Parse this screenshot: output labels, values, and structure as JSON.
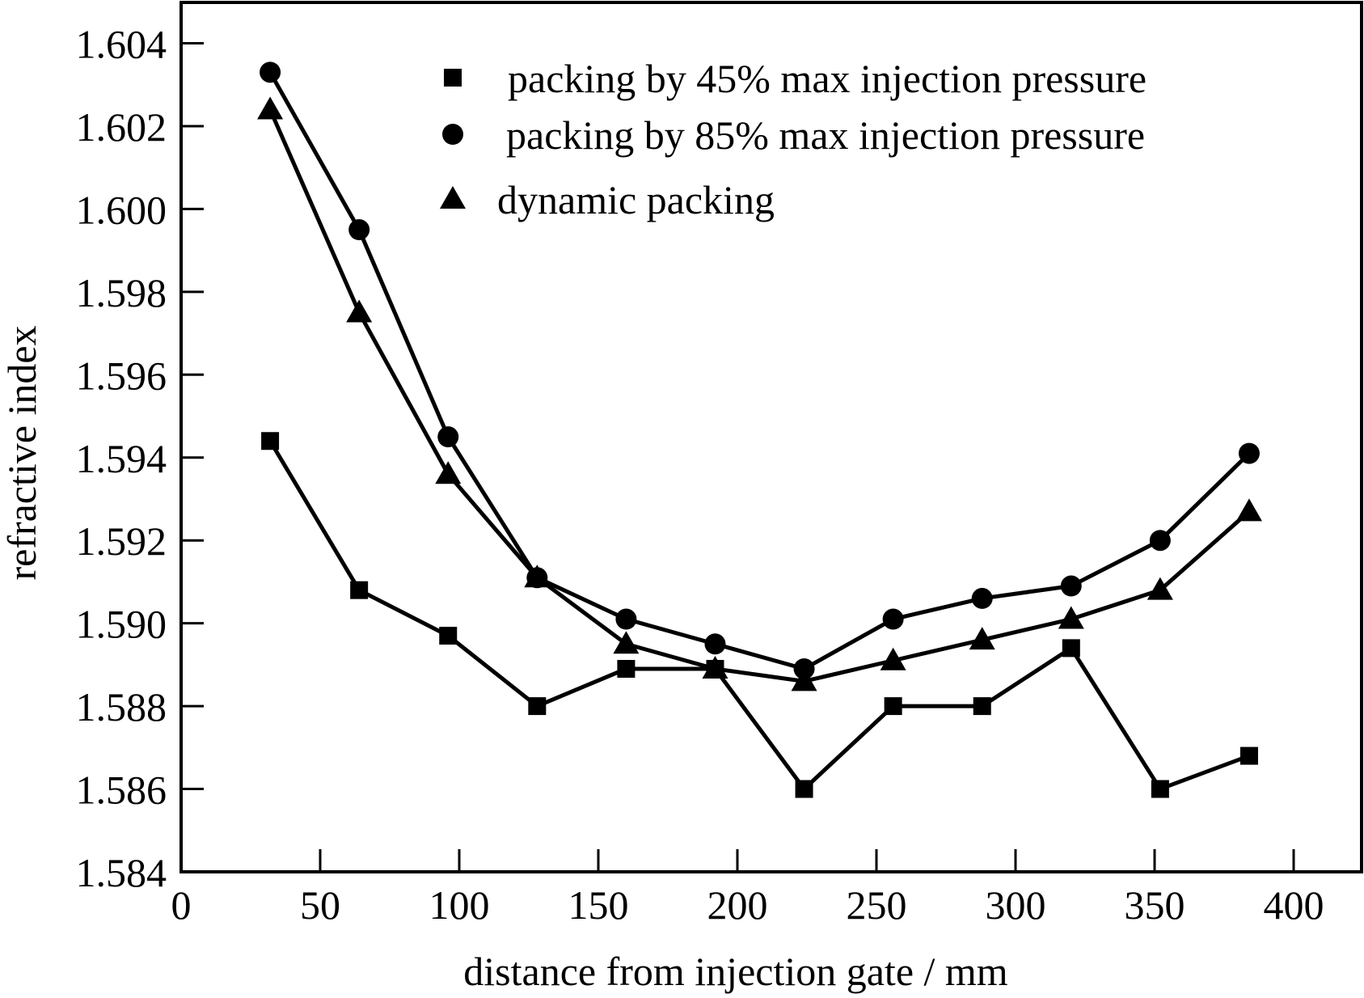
{
  "chart_data": {
    "type": "line",
    "title": "",
    "xlabel": "distance from injection gate / mm",
    "ylabel": "refractive index",
    "xlim": [
      0,
      420
    ],
    "ylim": [
      1.584,
      1.605
    ],
    "xticks": [
      0,
      50,
      100,
      150,
      200,
      250,
      300,
      350,
      400
    ],
    "xtick_labels": [
      "0",
      "50",
      "100",
      "150",
      "200",
      "250",
      "300",
      "350",
      "400"
    ],
    "yticks": [
      1.584,
      1.586,
      1.588,
      1.59,
      1.592,
      1.594,
      1.596,
      1.598,
      1.6,
      1.602,
      1.604
    ],
    "ytick_labels": [
      "1.584",
      "1.586",
      "1.588",
      "1.590",
      "1.592",
      "1.594",
      "1.596",
      "1.598",
      "1.600",
      "1.602",
      "1.604"
    ],
    "grid": false,
    "legend_position": "top-right",
    "x": [
      32,
      64,
      96,
      128,
      160,
      192,
      224,
      256,
      288,
      320,
      352,
      384
    ],
    "series": [
      {
        "name": "packing by 45% max injection pressure",
        "marker": "square",
        "color": "#000000",
        "values": [
          1.5944,
          1.5908,
          1.5897,
          1.588,
          1.5889,
          1.5889,
          1.586,
          1.588,
          1.588,
          1.5894,
          1.586,
          1.5868
        ]
      },
      {
        "name": "packing by 85% max injection pressure",
        "marker": "circle",
        "color": "#000000",
        "values": [
          1.6033,
          1.5995,
          1.5945,
          1.5911,
          1.5901,
          1.5895,
          1.5889,
          1.5901,
          1.5906,
          1.5909,
          1.592,
          1.5941
        ]
      },
      {
        "name": "dynamic packing",
        "marker": "triangle",
        "color": "#000000",
        "values": [
          1.6024,
          1.5975,
          1.5936,
          1.5911,
          1.5895,
          1.5889,
          1.5886,
          1.5891,
          1.5896,
          1.5901,
          1.5908,
          1.5927
        ]
      }
    ]
  }
}
